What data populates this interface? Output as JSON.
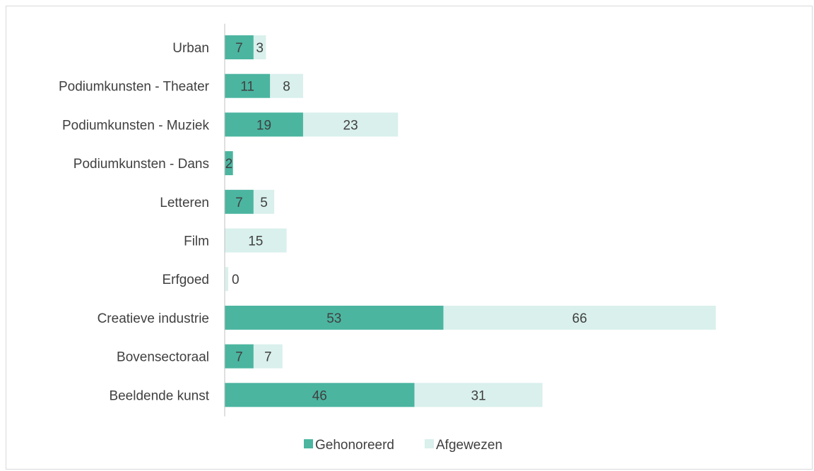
{
  "chart_data": {
    "type": "bar",
    "orientation": "horizontal",
    "stacked": true,
    "title": "",
    "xlabel": "",
    "ylabel": "",
    "categories": [
      "Beeldende kunst",
      "Bovensectoraal",
      "Creatieve industrie",
      "Erfgoed",
      "Film",
      "Letteren",
      "Podiumkunsten - Dans",
      "Podiumkunsten - Muziek",
      "Podiumkunsten - Theater",
      "Urban"
    ],
    "series": [
      {
        "name": "Gehonoreerd",
        "values": [
          46,
          7,
          53,
          0,
          0,
          7,
          2,
          19,
          11,
          7
        ],
        "labels": [
          "46",
          "7",
          "53",
          "",
          "",
          "7",
          "2",
          "19",
          "11",
          "7"
        ],
        "color": "#4bb5a0"
      },
      {
        "name": "Afgewezen",
        "values": [
          31,
          7,
          66,
          0,
          15,
          5,
          0,
          23,
          8,
          3
        ],
        "labels": [
          "31",
          "7",
          "66",
          "0",
          "15",
          "5",
          "",
          "23",
          "8",
          "3"
        ],
        "color": "#d9f0ec"
      }
    ],
    "xlim": [
      0,
      119
    ],
    "grid": false,
    "legend_position": "bottom"
  }
}
